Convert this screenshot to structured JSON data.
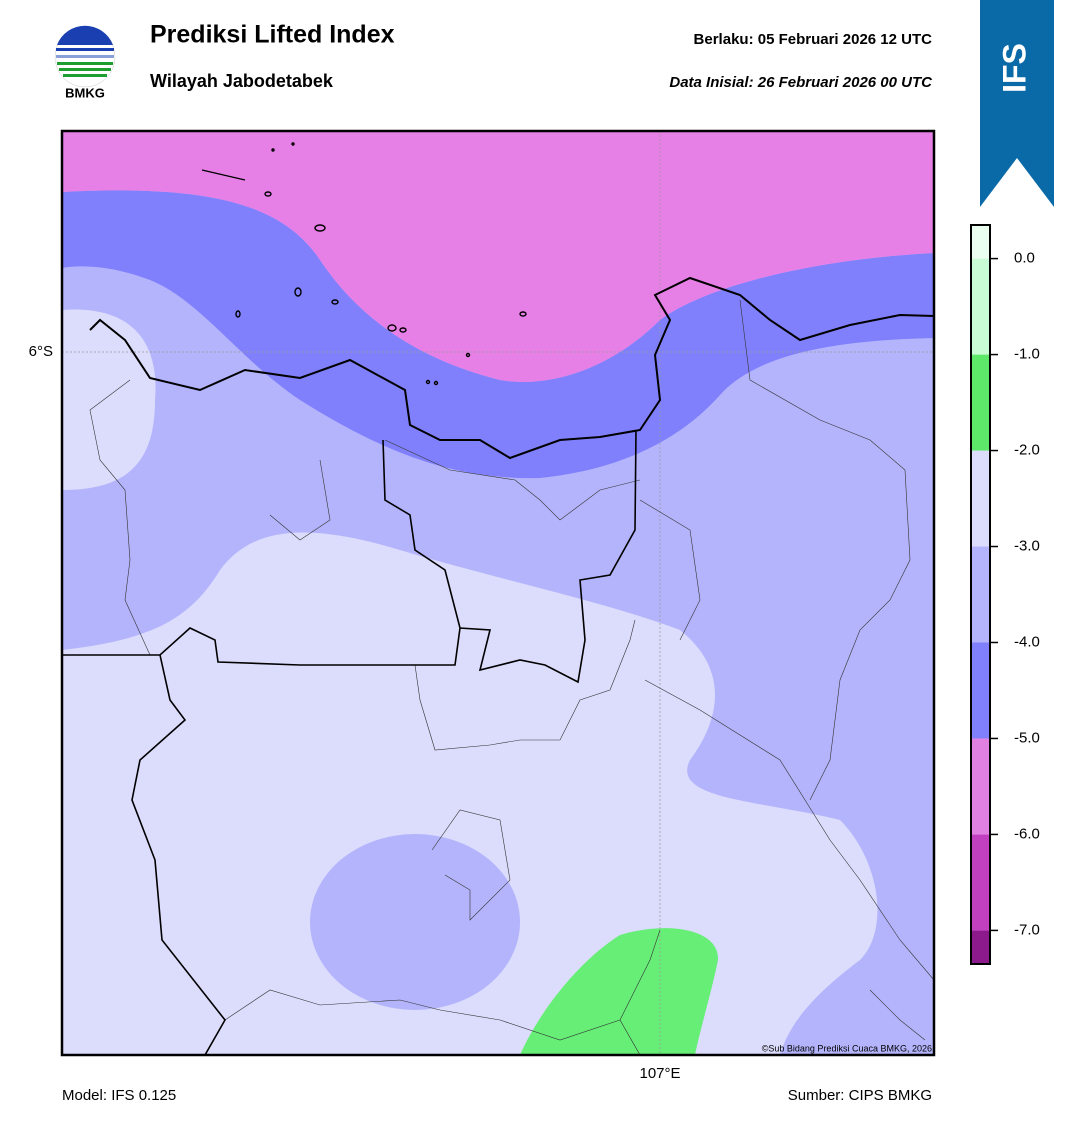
{
  "header": {
    "logo_text": "BMKG",
    "title": "Prediksi Lifted Index",
    "subtitle": "Wilayah Jabodetabek",
    "valid": "Berlaku:  05 Februari 2026 12 UTC",
    "init": "Data Inisial:  26 Februari 2026 00 UTC",
    "badge": "IFS"
  },
  "map": {
    "lat_label": "6°S",
    "lon_label": "107°E",
    "credit": "©Sub Bidang Prediksi Cuaca BMKG, 2026"
  },
  "colorbar": {
    "lim": [
      -7.35,
      0.35
    ],
    "bounds": [
      -7.35,
      -7,
      -6,
      -5,
      -4,
      -3,
      -2,
      -1,
      0,
      0.35
    ],
    "colors": [
      "#8c1a8c",
      "#c040c0",
      "#e080e0",
      "#8080fc",
      "#b4b4fc",
      "#dcdcfc",
      "#5ee86a",
      "#c8fcd4",
      "#eafff0"
    ],
    "ticks": [
      {
        "value": 0,
        "label": "0.0"
      },
      {
        "value": -1,
        "label": "-1.0"
      },
      {
        "value": -2,
        "label": "-2.0"
      },
      {
        "value": -3,
        "label": "-3.0"
      },
      {
        "value": -4,
        "label": "-4.0"
      },
      {
        "value": -5,
        "label": "-5.0"
      },
      {
        "value": -6,
        "label": "-6.0"
      },
      {
        "value": -7,
        "label": "-7.0"
      }
    ]
  },
  "footer": {
    "model": "Model: IFS 0.125",
    "source": "Sumber: CIPS BMKG"
  }
}
